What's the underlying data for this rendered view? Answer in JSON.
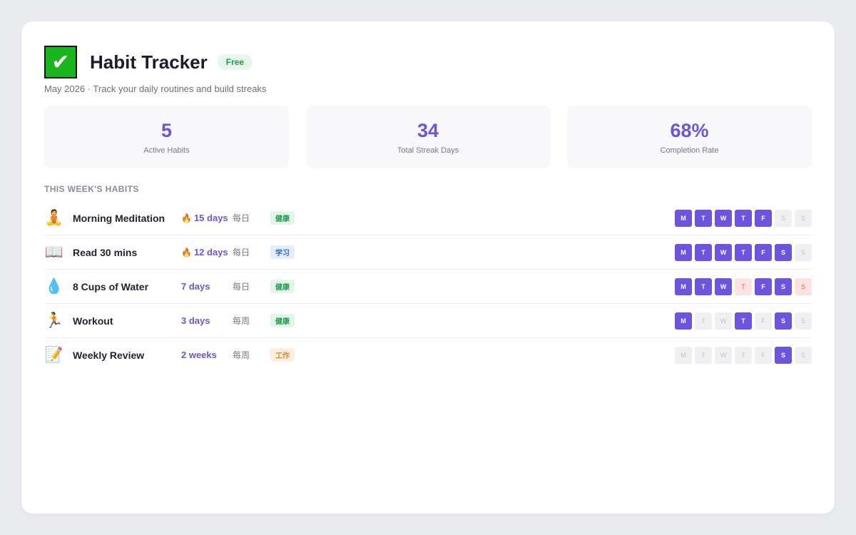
{
  "header": {
    "icon": "✔",
    "title": "Habit Tracker",
    "badge": "Free",
    "subtitle": "May 2026 · Track your daily routines and build streaks"
  },
  "stats": [
    {
      "value": "5",
      "label": "Active Habits"
    },
    {
      "value": "34",
      "label": "Total Streak Days"
    },
    {
      "value": "68%",
      "label": "Completion Rate"
    }
  ],
  "section_title": "THIS WEEK'S HABITS",
  "days": [
    "M",
    "T",
    "W",
    "T",
    "F",
    "S",
    "S"
  ],
  "habits": [
    {
      "icon": "🧘",
      "name": "Morning Meditation",
      "flame": "🔥",
      "streak": "15 days",
      "frequency": "每日",
      "tag": "健康",
      "tag_style": "green",
      "week": [
        "done",
        "done",
        "done",
        "done",
        "done",
        "empty",
        "empty"
      ]
    },
    {
      "icon": "📖",
      "name": "Read 30 mins",
      "flame": "🔥",
      "streak": "12 days",
      "frequency": "每日",
      "tag": "学习",
      "tag_style": "blue",
      "week": [
        "done",
        "done",
        "done",
        "done",
        "done",
        "done",
        "empty"
      ]
    },
    {
      "icon": "💧",
      "name": "8 Cups of Water",
      "streak": "7 days",
      "frequency": "每日",
      "tag": "健康",
      "tag_style": "green",
      "week": [
        "done",
        "done",
        "done",
        "missed",
        "done",
        "done",
        "missed"
      ]
    },
    {
      "icon": "🏃",
      "name": "Workout",
      "streak": "3 days",
      "frequency": "每周",
      "tag": "健康",
      "tag_style": "green",
      "week": [
        "done",
        "empty",
        "empty",
        "done",
        "empty",
        "done",
        "empty"
      ]
    },
    {
      "icon": "📝",
      "name": "Weekly Review",
      "streak": "2 weeks",
      "frequency": "每周",
      "tag": "工作",
      "tag_style": "orange",
      "week": [
        "empty",
        "empty",
        "empty",
        "empty",
        "empty",
        "done",
        "empty"
      ]
    }
  ]
}
